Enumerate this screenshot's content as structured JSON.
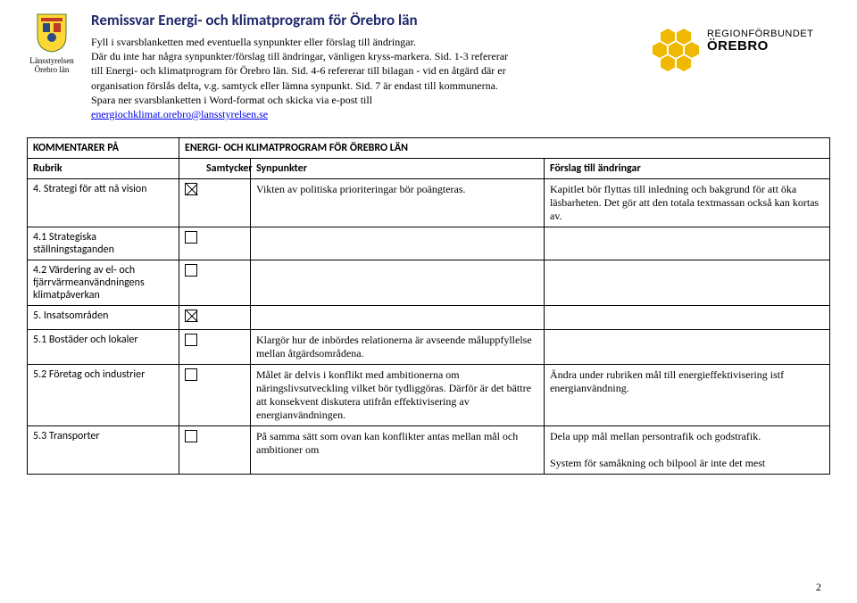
{
  "leftLogo": {
    "line1": "Länsstyrelsen",
    "line2": "Örebro län"
  },
  "title": "Remissvar Energi- och klimatprogram för Örebro län",
  "intro": {
    "p1": "Fyll i svarsblanketten med eventuella synpunkter eller förslag till ändringar.",
    "p2a": "Där du inte har några synpunkter/förslag till ändringar, vänligen kryss-markera. Sid. 1-3 refererar till Energi- och klimatprogram för Örebro län. Sid. 4-6 refererar till bilagan - vid en åtgärd där er organisation förslås delta, v.g. samtyck eller lämna synpunkt. Sid. 7 är endast till kommunerna. Spara ner svarsblanketten i Word-format och skicka via e-post till ",
    "email": "energiochklimat.orebro@lansstyrelsen.se"
  },
  "rightLogo": {
    "line1": "REGIONFÖRBUNDET",
    "line2": "ÖREBRO"
  },
  "tableHeader": {
    "kommentarer": "KOMMENTARER PÅ",
    "program": "ENERGI- OCH KLIMATPROGRAM FÖR ÖREBRO LÄN",
    "rubrik": "Rubrik",
    "samtycker": "Samtycker",
    "synpunkter": "Synpunkter",
    "forslag": "Förslag till ändringar"
  },
  "rows": [
    {
      "rubrik": "4. Strategi för att nå vision",
      "checked": true,
      "syn": "Vikten av politiska prioriteringar bör poängteras.",
      "forslag": "Kapitlet bör flyttas till inledning och bakgrund för att öka läsbarheten. Det gör att den totala textmassan också kan kortas av."
    },
    {
      "rubrik": "4.1 Strategiska ställningstaganden",
      "checked": false,
      "syn": "",
      "forslag": ""
    },
    {
      "rubrik": "4.2 Värdering av el- och fjärrvärmeanvändningens klimatpåverkan",
      "checked": false,
      "syn": "",
      "forslag": ""
    },
    {
      "rubrik": "5. Insatsområden",
      "checked": true,
      "syn": "",
      "forslag": ""
    },
    {
      "rubrik": "5.1 Bostäder och lokaler",
      "checked": false,
      "syn": "Klargör hur de inbördes relationerna är avseende måluppfyllelse mellan åtgärdsområdena.",
      "forslag": ""
    },
    {
      "rubrik": "5.2 Företag och industrier",
      "checked": false,
      "syn": "Målet är delvis i konflikt med ambitionerna om näringslivsutveckling vilket bör tydliggöras. Därför är det bättre att konsekvent diskutera utifrån effektivisering av energianvändningen.",
      "forslag": "Ändra under rubriken mål till energieffektivisering istf energianvändning."
    },
    {
      "rubrik": "5.3 Transporter",
      "checked": false,
      "syn": "På samma sätt som ovan kan konflikter antas mellan mål och ambitioner om",
      "forslag": "Dela upp mål mellan persontrafik och godstrafik.\n\nSystem för samåkning och bilpool är inte det mest"
    }
  ],
  "pageNumber": "2"
}
